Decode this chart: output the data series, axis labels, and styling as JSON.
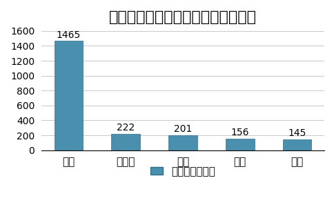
{
  "title": "线上市场主要养生壶品牌价格段比较",
  "categories": [
    "北鼎",
    "苏泊尔",
    "九阳",
    "美的",
    "小熊"
  ],
  "values": [
    1465,
    222,
    201,
    156,
    145
  ],
  "bar_color": "#4a8fad",
  "bar_edge_color": "#2e6f8a",
  "ylim": [
    0,
    1600
  ],
  "yticks": [
    0,
    200,
    400,
    600,
    800,
    1000,
    1200,
    1400,
    1600
  ],
  "legend_label": "市场价格（元）",
  "background_color": "#ffffff",
  "grid_color": "#cccccc",
  "title_fontsize": 16,
  "label_fontsize": 11,
  "tick_fontsize": 10,
  "value_fontsize": 10
}
